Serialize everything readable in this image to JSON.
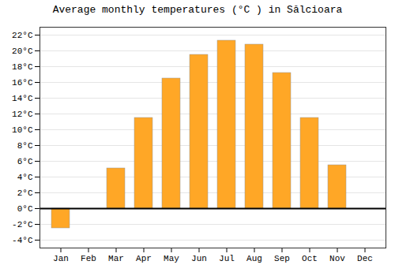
{
  "chart_data": {
    "type": "bar",
    "title": "Average monthly temperatures (°C ) in Sălcioara",
    "categories": [
      "Jan",
      "Feb",
      "Mar",
      "Apr",
      "May",
      "Jun",
      "Jul",
      "Aug",
      "Sep",
      "Oct",
      "Nov",
      "Dec"
    ],
    "values": [
      -2.5,
      0,
      5.1,
      11.5,
      16.5,
      19.5,
      21.3,
      20.8,
      17.2,
      11.5,
      5.5,
      0
    ],
    "color": "#FFA726",
    "ylim": [
      -5,
      23
    ],
    "yticks": [
      {
        "value": -4,
        "label": "-4°C"
      },
      {
        "value": -2,
        "label": "-2°C"
      },
      {
        "value": 0,
        "label": "0°C"
      },
      {
        "value": 2,
        "label": "2°C"
      },
      {
        "value": 4,
        "label": "4°C"
      },
      {
        "value": 6,
        "label": "6°C"
      },
      {
        "value": 8,
        "label": "8°C"
      },
      {
        "value": 10,
        "label": "10°C"
      },
      {
        "value": 12,
        "label": "12°C"
      },
      {
        "value": 14,
        "label": "14°C"
      },
      {
        "value": 16,
        "label": "16°C"
      },
      {
        "value": 18,
        "label": "18°C"
      },
      {
        "value": 20,
        "label": "20°C"
      },
      {
        "value": 22,
        "label": "22°C"
      }
    ],
    "grid": true
  }
}
